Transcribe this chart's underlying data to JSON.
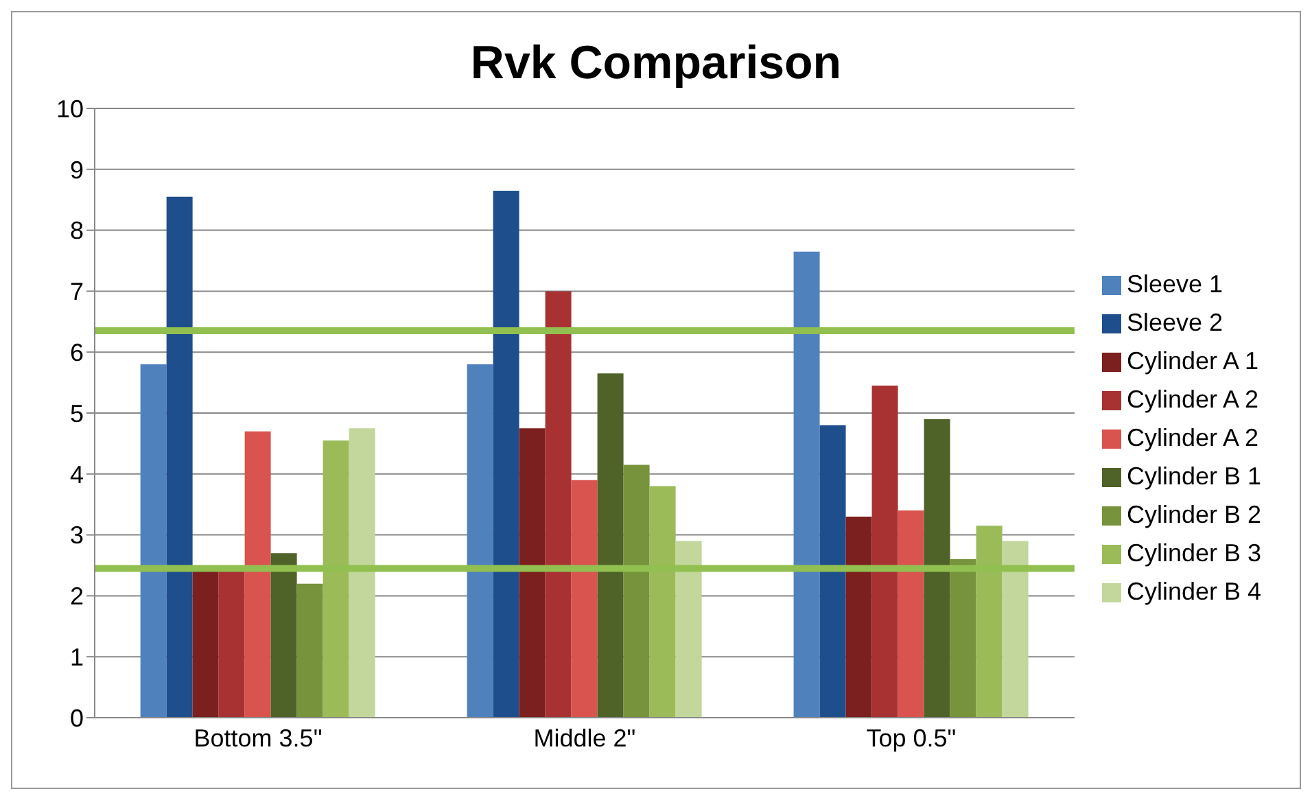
{
  "chart_data": {
    "type": "bar",
    "title": "Rvk Comparison",
    "categories": [
      "Bottom 3.5\"",
      "Middle 2\"",
      "Top 0.5\""
    ],
    "series": [
      {
        "name": "Sleeve 1",
        "color": "#4f81bd",
        "values": [
          5.8,
          5.8,
          7.65
        ]
      },
      {
        "name": "Sleeve 2",
        "color": "#1f4e8c",
        "values": [
          8.55,
          8.65,
          4.8
        ]
      },
      {
        "name": "Cylinder A 1",
        "color": "#7b1f1f",
        "values": [
          2.4,
          4.75,
          3.3
        ]
      },
      {
        "name": "Cylinder A 2",
        "color": "#a83232",
        "values": [
          2.4,
          7.0,
          5.45
        ]
      },
      {
        "name": "Cylinder A 2",
        "color": "#d9534f",
        "values": [
          4.7,
          3.9,
          3.4
        ]
      },
      {
        "name": "Cylinder B 1",
        "color": "#4f6228",
        "values": [
          2.7,
          5.65,
          4.9
        ]
      },
      {
        "name": "Cylinder B 2",
        "color": "#77933c",
        "values": [
          2.2,
          4.15,
          2.6
        ]
      },
      {
        "name": "Cylinder B 3",
        "color": "#9bbb59",
        "values": [
          4.55,
          3.8,
          3.15
        ]
      },
      {
        "name": "Cylinder B 4",
        "color": "#c3d69b",
        "values": [
          4.75,
          2.9,
          2.9
        ]
      }
    ],
    "ylim": [
      0,
      10
    ],
    "yticks": [
      0,
      1,
      2,
      3,
      4,
      5,
      6,
      7,
      8,
      9,
      10
    ],
    "grid": "y",
    "legend": "right",
    "ref_lines": [
      {
        "axis": "y",
        "value": 6.35,
        "color": "#92c050"
      },
      {
        "axis": "y",
        "value": 2.45,
        "color": "#92c050"
      }
    ]
  }
}
